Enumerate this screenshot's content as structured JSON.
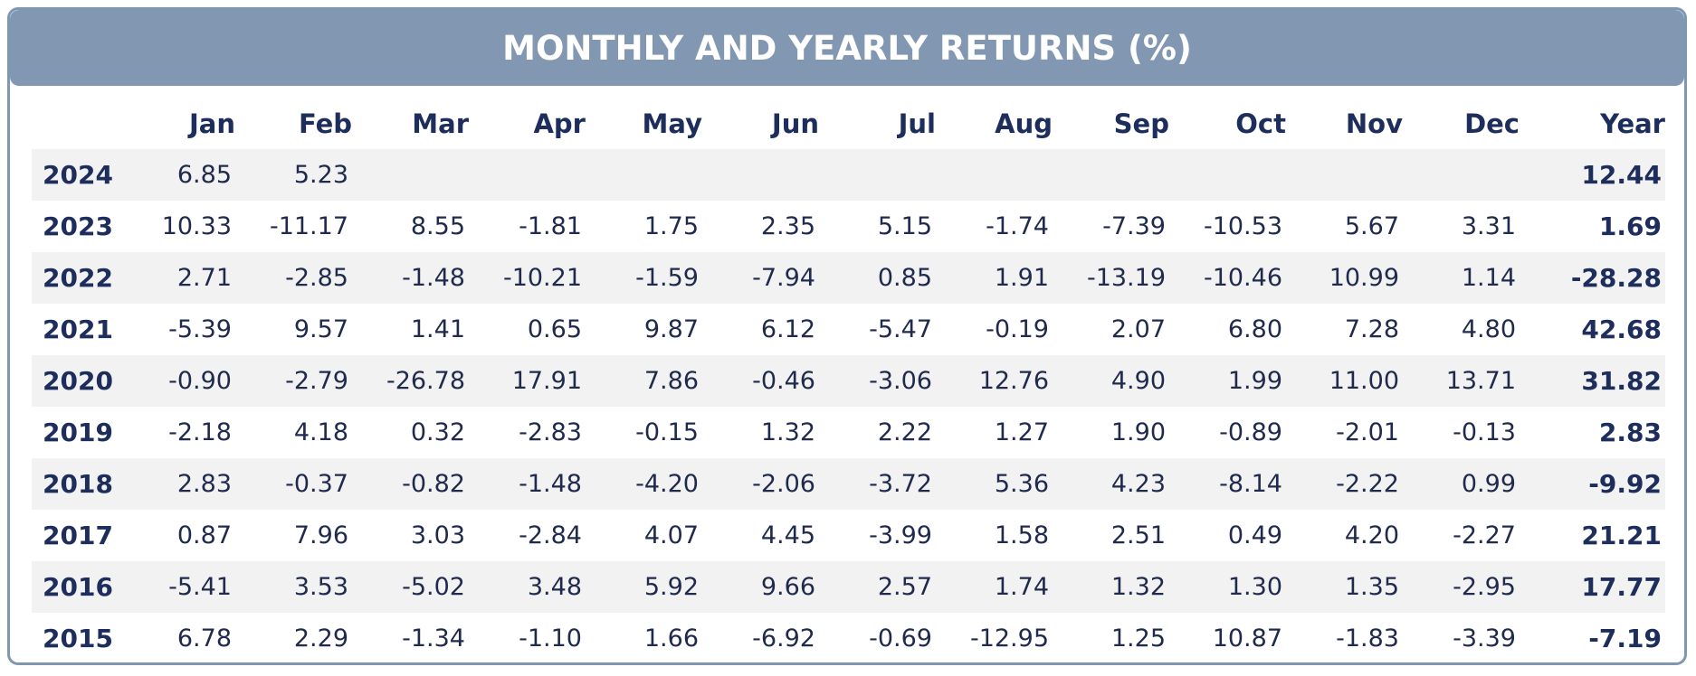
{
  "title": "MONTHLY AND YEARLY RETURNS (%)",
  "colors": {
    "header_bg": "#8298b2",
    "border": "#8097b1",
    "text": "#1d2d5c",
    "stripe": "#f2f2f2"
  },
  "chart_data": {
    "type": "table",
    "title": "MONTHLY AND YEARLY RETURNS (%)",
    "columns": [
      "",
      "Jan",
      "Feb",
      "Mar",
      "Apr",
      "May",
      "Jun",
      "Jul",
      "Aug",
      "Sep",
      "Oct",
      "Nov",
      "Dec",
      "Year"
    ],
    "rows": [
      {
        "year": "2024",
        "months": [
          "6.85",
          "5.23",
          "",
          "",
          "",
          "",
          "",
          "",
          "",
          "",
          "",
          ""
        ],
        "total": "12.44"
      },
      {
        "year": "2023",
        "months": [
          "10.33",
          "-11.17",
          "8.55",
          "-1.81",
          "1.75",
          "2.35",
          "5.15",
          "-1.74",
          "-7.39",
          "-10.53",
          "5.67",
          "3.31"
        ],
        "total": "1.69"
      },
      {
        "year": "2022",
        "months": [
          "2.71",
          "-2.85",
          "-1.48",
          "-10.21",
          "-1.59",
          "-7.94",
          "0.85",
          "1.91",
          "-13.19",
          "-10.46",
          "10.99",
          "1.14"
        ],
        "total": "-28.28"
      },
      {
        "year": "2021",
        "months": [
          "-5.39",
          "9.57",
          "1.41",
          "0.65",
          "9.87",
          "6.12",
          "-5.47",
          "-0.19",
          "2.07",
          "6.80",
          "7.28",
          "4.80"
        ],
        "total": "42.68"
      },
      {
        "year": "2020",
        "months": [
          "-0.90",
          "-2.79",
          "-26.78",
          "17.91",
          "7.86",
          "-0.46",
          "-3.06",
          "12.76",
          "4.90",
          "1.99",
          "11.00",
          "13.71"
        ],
        "total": "31.82"
      },
      {
        "year": "2019",
        "months": [
          "-2.18",
          "4.18",
          "0.32",
          "-2.83",
          "-0.15",
          "1.32",
          "2.22",
          "1.27",
          "1.90",
          "-0.89",
          "-2.01",
          "-0.13"
        ],
        "total": "2.83"
      },
      {
        "year": "2018",
        "months": [
          "2.83",
          "-0.37",
          "-0.82",
          "-1.48",
          "-4.20",
          "-2.06",
          "-3.72",
          "5.36",
          "4.23",
          "-8.14",
          "-2.22",
          "0.99"
        ],
        "total": "-9.92"
      },
      {
        "year": "2017",
        "months": [
          "0.87",
          "7.96",
          "3.03",
          "-2.84",
          "4.07",
          "4.45",
          "-3.99",
          "1.58",
          "2.51",
          "0.49",
          "4.20",
          "-2.27"
        ],
        "total": "21.21"
      },
      {
        "year": "2016",
        "months": [
          "-5.41",
          "3.53",
          "-5.02",
          "3.48",
          "5.92",
          "9.66",
          "2.57",
          "1.74",
          "1.32",
          "1.30",
          "1.35",
          "-2.95"
        ],
        "total": "17.77"
      },
      {
        "year": "2015",
        "months": [
          "6.78",
          "2.29",
          "-1.34",
          "-1.10",
          "1.66",
          "-6.92",
          "-0.69",
          "-12.95",
          "1.25",
          "10.87",
          "-1.83",
          "-3.39"
        ],
        "total": "-7.19"
      }
    ]
  }
}
